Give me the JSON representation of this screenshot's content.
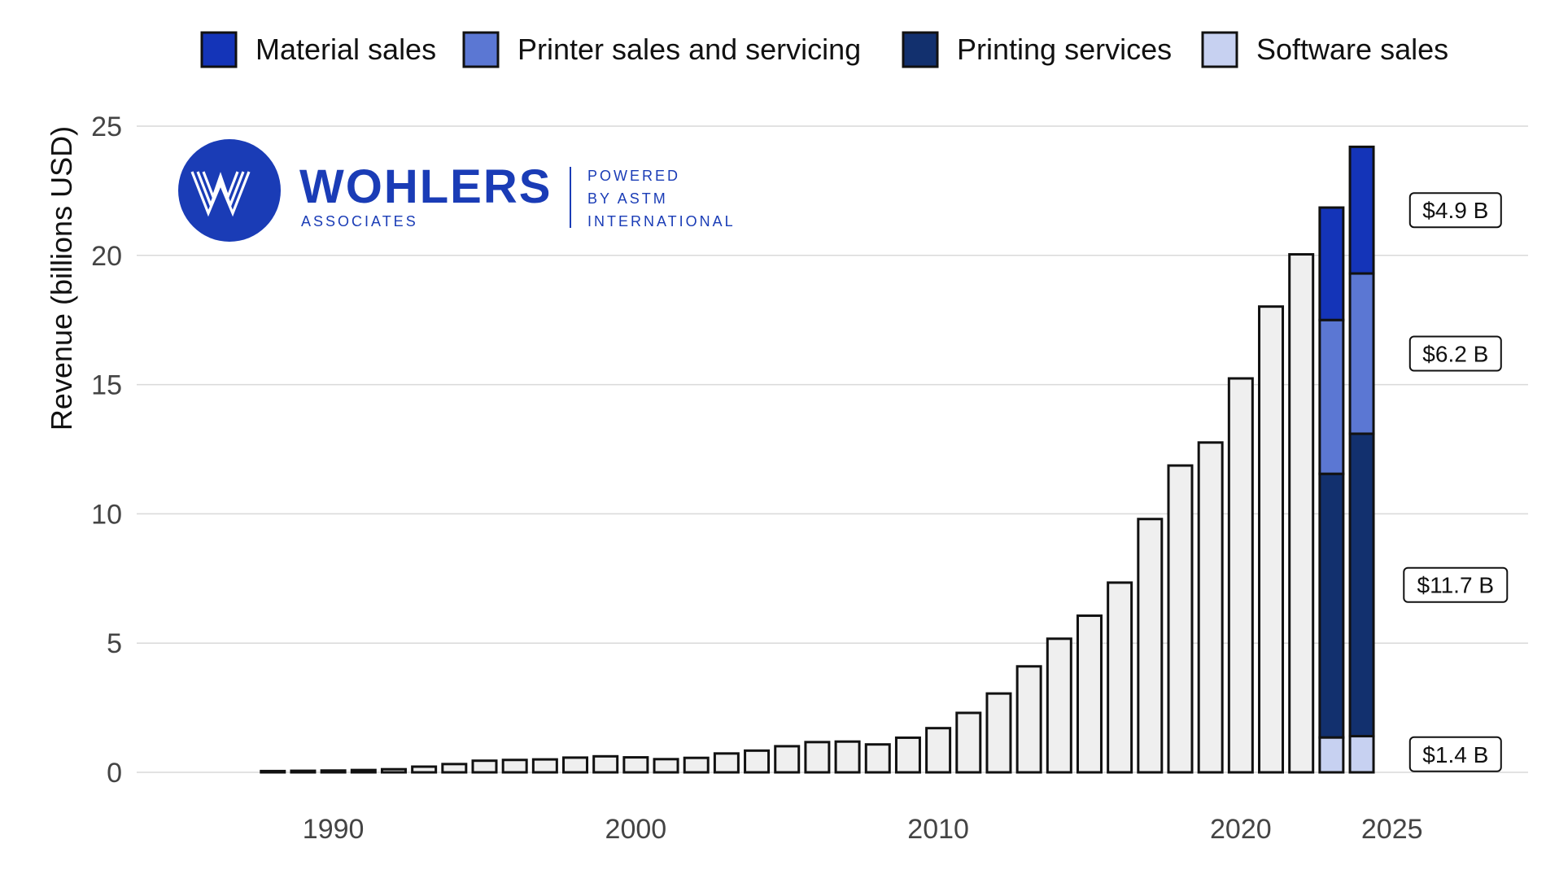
{
  "chart_data": {
    "type": "bar",
    "title": "",
    "xlabel": "",
    "ylabel": "Revenue (billions USD)",
    "ylim": [
      0,
      25
    ],
    "xlim": [
      1983.5,
      2029.5
    ],
    "yticks": [
      0,
      5,
      10,
      15,
      20,
      25
    ],
    "xticks": [
      1990,
      2000,
      2010,
      2020,
      2025
    ],
    "grid": true,
    "legend_position": "top",
    "legend": [
      {
        "name": "Material sales",
        "color": "#1434b8"
      },
      {
        "name": "Printer sales and servicing",
        "color": "#5b77d3"
      },
      {
        "name": "Printing services",
        "color": "#12306e"
      },
      {
        "name": "Software sales",
        "color": "#c7d1f1"
      }
    ],
    "total_bar_color": "#efefef",
    "totals": [
      {
        "year": 1988,
        "value": 0.05
      },
      {
        "year": 1989,
        "value": 0.06
      },
      {
        "year": 1990,
        "value": 0.07
      },
      {
        "year": 1991,
        "value": 0.09
      },
      {
        "year": 1992,
        "value": 0.12
      },
      {
        "year": 1993,
        "value": 0.22
      },
      {
        "year": 1994,
        "value": 0.32
      },
      {
        "year": 1995,
        "value": 0.45
      },
      {
        "year": 1996,
        "value": 0.48
      },
      {
        "year": 1997,
        "value": 0.5
      },
      {
        "year": 1998,
        "value": 0.57
      },
      {
        "year": 1999,
        "value": 0.62
      },
      {
        "year": 2000,
        "value": 0.58
      },
      {
        "year": 2001,
        "value": 0.51
      },
      {
        "year": 2002,
        "value": 0.56
      },
      {
        "year": 2003,
        "value": 0.73
      },
      {
        "year": 2004,
        "value": 0.84
      },
      {
        "year": 2005,
        "value": 1.01
      },
      {
        "year": 2006,
        "value": 1.17
      },
      {
        "year": 2007,
        "value": 1.19
      },
      {
        "year": 2008,
        "value": 1.08
      },
      {
        "year": 2009,
        "value": 1.34
      },
      {
        "year": 2010,
        "value": 1.71
      },
      {
        "year": 2011,
        "value": 2.3
      },
      {
        "year": 2012,
        "value": 3.05
      },
      {
        "year": 2013,
        "value": 4.1
      },
      {
        "year": 2014,
        "value": 5.17
      },
      {
        "year": 2015,
        "value": 6.06
      },
      {
        "year": 2016,
        "value": 7.34
      },
      {
        "year": 2017,
        "value": 9.8
      },
      {
        "year": 2018,
        "value": 11.87
      },
      {
        "year": 2019,
        "value": 12.76
      },
      {
        "year": 2020,
        "value": 15.24
      },
      {
        "year": 2021,
        "value": 18.02
      },
      {
        "year": 2022,
        "value": 20.04
      }
    ],
    "stacked_years": [
      {
        "year": 2023,
        "segments": [
          {
            "name": "Software sales",
            "value": 1.35
          },
          {
            "name": "Printing services",
            "value": 10.2
          },
          {
            "name": "Printer sales and servicing",
            "value": 5.95
          },
          {
            "name": "Material sales",
            "value": 4.35
          }
        ]
      },
      {
        "year": 2024,
        "segments": [
          {
            "name": "Software sales",
            "value": 1.4
          },
          {
            "name": "Printing services",
            "value": 11.7
          },
          {
            "name": "Printer sales and servicing",
            "value": 6.2
          },
          {
            "name": "Material sales",
            "value": 4.9
          }
        ]
      }
    ],
    "annotations": [
      {
        "label": "$4.9 B",
        "value": 21.75
      },
      {
        "label": "$6.2 B",
        "value": 16.2
      },
      {
        "label": "$11.7 B",
        "value": 7.25
      },
      {
        "label": "$1.4 B",
        "value": 0.7
      }
    ]
  },
  "logo": {
    "name": "WOHLERS",
    "sub": "ASSOCIATES",
    "tagline": [
      "POWERED",
      "BY ASTM",
      "INTERNATIONAL"
    ],
    "color": "#1a3cb6"
  }
}
